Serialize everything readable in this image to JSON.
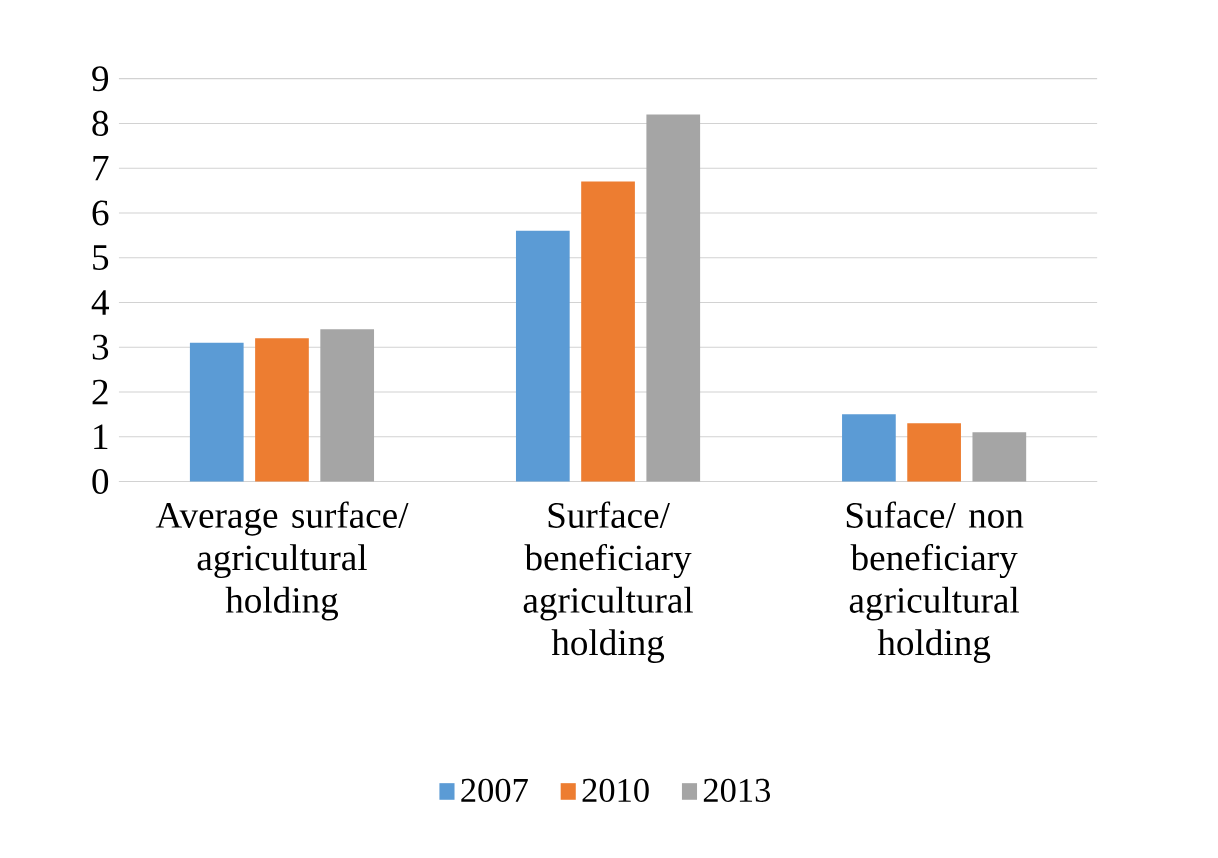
{
  "chart_data": {
    "type": "bar",
    "categories": [
      "Average surface/ agricultural holding",
      "Surface/ beneficiary agricultural holding",
      "Suface/ non beneficiary agricultural holding"
    ],
    "series": [
      {
        "name": "2007",
        "color": "#5b9bd5",
        "values": [
          3.1,
          5.6,
          1.5
        ]
      },
      {
        "name": "2010",
        "color": "#ed7d31",
        "values": [
          3.2,
          6.7,
          1.3
        ]
      },
      {
        "name": "2013",
        "color": "#a5a5a5",
        "values": [
          3.4,
          8.2,
          1.1
        ]
      }
    ],
    "ylim": [
      0,
      9
    ],
    "yticks": [
      0,
      1,
      2,
      3,
      4,
      5,
      6,
      7,
      8,
      9
    ],
    "grid": "y",
    "legend": "bottom"
  }
}
